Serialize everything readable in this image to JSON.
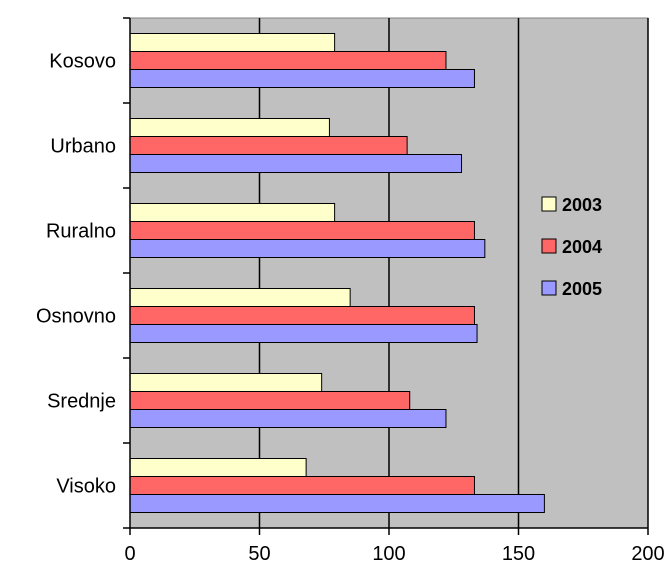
{
  "chart_data": {
    "type": "bar",
    "orientation": "horizontal",
    "categories": [
      "Kosovo",
      "Urbano",
      "Ruralno",
      "Osnovno",
      "Srednje",
      "Visoko"
    ],
    "series": [
      {
        "name": "2003",
        "values": [
          79,
          77,
          79,
          85,
          74,
          68
        ]
      },
      {
        "name": "2004",
        "values": [
          122,
          107,
          133,
          133,
          108,
          133
        ]
      },
      {
        "name": "2005",
        "values": [
          133,
          128,
          137,
          134,
          122,
          160
        ]
      }
    ],
    "xlim": [
      0,
      200
    ],
    "x_ticks": [
      "0",
      "50",
      "100",
      "150",
      "200"
    ],
    "grid": true,
    "legend_position": "right",
    "colors": {
      "plot_background": "#c0c0c0",
      "2003": "#ffffcc",
      "2004": "#ff6666",
      "2005": "#9999ff"
    }
  }
}
